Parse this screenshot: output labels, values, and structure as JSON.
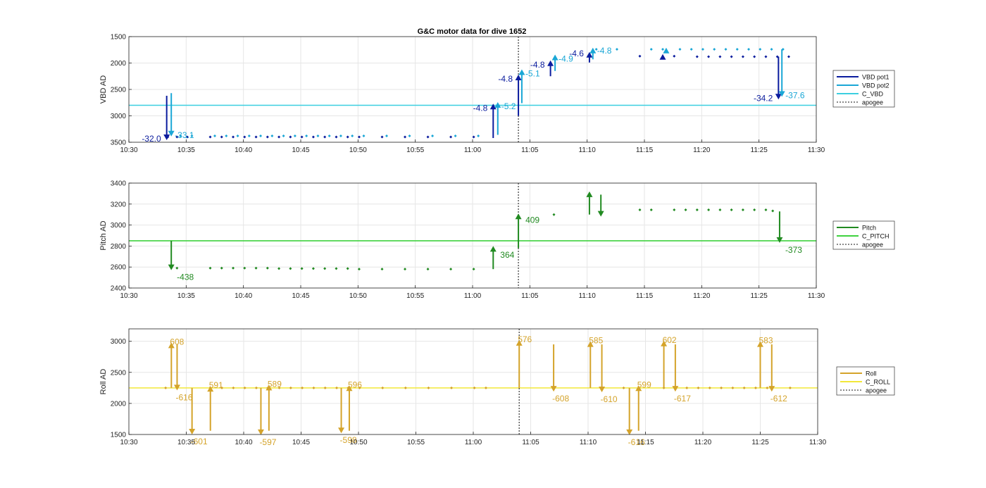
{
  "title": "G&C motor data for dive 1652",
  "colors": {
    "vbd_pot1": "#0b1c9e",
    "vbd_pot2": "#1aa7d6",
    "c_vbd": "#3ccfe0",
    "pitch": "#218a21",
    "c_pitch": "#3fd23f",
    "roll": "#d4a32a",
    "c_roll": "#f2e83a",
    "apogee": "#444444",
    "grid": "#e6e6e6"
  },
  "chart_data": [
    {
      "type": "scatter",
      "title": "G&C motor data for dive 1652",
      "ylabel": "VBD AD",
      "xlabel": "",
      "x_ticks": [
        "10:30",
        "10:35",
        "10:40",
        "10:45",
        "10:50",
        "10:55",
        "11:00",
        "11:05",
        "11:10",
        "11:15",
        "11:20",
        "11:25",
        "11:30"
      ],
      "xlim_minutes": [
        0,
        60
      ],
      "ylim": [
        1500,
        3500
      ],
      "y_reversed": true,
      "y_ticks": [
        1500,
        2000,
        2500,
        3000,
        3500
      ],
      "grid": true,
      "legend": [
        "VBD pot1",
        "VBD pot2",
        "C_VBD",
        "apogee"
      ],
      "legend_position": "right",
      "apogee_minute": 34,
      "reference_line": {
        "name": "C_VBD",
        "y": 2800
      },
      "series": [
        {
          "name": "VBD pot1",
          "x": [
            3.4,
            4.2,
            5.1,
            7.1,
            8.1,
            9.1,
            10.1,
            11.1,
            12.1,
            13.1,
            14.1,
            15.1,
            16.1,
            17.1,
            18.1,
            19.1,
            20.1,
            22.1,
            24.1,
            26.1,
            28.1,
            30.1,
            44.6,
            47.6,
            49.6,
            50.6,
            51.6,
            52.6,
            53.6,
            54.6,
            55.6,
            56.6,
            57.6
          ],
          "y": [
            3400,
            3400,
            3400,
            3400,
            3400,
            3400,
            3400,
            3400,
            3400,
            3400,
            3400,
            3400,
            3400,
            3400,
            3400,
            3400,
            3400,
            3400,
            3400,
            3400,
            3400,
            3400,
            1870,
            1870,
            1880,
            1880,
            1880,
            1880,
            1880,
            1880,
            1880,
            1880,
            1880
          ]
        },
        {
          "name": "VBD pot2",
          "x": [
            4.5,
            5.5,
            7.5,
            8.5,
            9.5,
            10.5,
            11.5,
            12.5,
            13.5,
            14.5,
            15.5,
            16.5,
            17.5,
            18.5,
            19.5,
            20.5,
            22.5,
            24.5,
            26.5,
            28.5,
            30.5,
            40.8,
            42.6,
            45.6,
            46.6,
            48.1,
            49.1,
            50.1,
            51.1,
            52.1,
            53.1,
            54.1,
            55.1,
            56.1,
            57.1
          ],
          "y": [
            3380,
            3380,
            3380,
            3380,
            3380,
            3380,
            3380,
            3380,
            3380,
            3380,
            3380,
            3380,
            3380,
            3380,
            3380,
            3380,
            3380,
            3380,
            3380,
            3380,
            3380,
            1740,
            1740,
            1740,
            1740,
            1740,
            1740,
            1740,
            1740,
            1740,
            1740,
            1740,
            1740,
            1740,
            1740
          ]
        }
      ],
      "moves": [
        {
          "series": "VBD pot1",
          "x": 3.3,
          "from": 2620,
          "to": 3460,
          "label": "-32.0"
        },
        {
          "series": "VBD pot2",
          "x": 3.7,
          "from": 2570,
          "to": 3390,
          "label": "-33.1"
        },
        {
          "series": "VBD pot1",
          "x": 31.8,
          "from": 3420,
          "to": 2770,
          "label": "-4.8"
        },
        {
          "series": "VBD pot2",
          "x": 32.2,
          "from": 3360,
          "to": 2740,
          "label": "-5.2"
        },
        {
          "series": "VBD pot1",
          "x": 34.0,
          "from": 3000,
          "to": 2220,
          "label": "-4.8"
        },
        {
          "series": "VBD pot2",
          "x": 34.3,
          "from": 2760,
          "to": 2120,
          "label": "-5.1"
        },
        {
          "series": "VBD pot1",
          "x": 36.8,
          "from": 2250,
          "to": 1950,
          "label": "-4.8"
        },
        {
          "series": "VBD pot2",
          "x": 37.2,
          "from": 2150,
          "to": 1840,
          "label": "-4.9"
        },
        {
          "series": "VBD pot1",
          "x": 40.2,
          "from": 1990,
          "to": 1790,
          "label": "-4.6"
        },
        {
          "series": "VBD pot2",
          "x": 40.5,
          "from": 1930,
          "to": 1710,
          "label": "-4.8"
        },
        {
          "series": "VBD pot1",
          "x": 46.6,
          "from": 1870,
          "to": 1830,
          "label": ""
        },
        {
          "series": "VBD pot2",
          "x": 46.9,
          "from": 1800,
          "to": 1710,
          "label": ""
        },
        {
          "series": "VBD pot1",
          "x": 56.7,
          "from": 1880,
          "to": 2690,
          "label": "-34.2"
        },
        {
          "series": "VBD pot2",
          "x": 57.0,
          "from": 1740,
          "to": 2640,
          "label": "-37.6"
        }
      ]
    },
    {
      "type": "scatter",
      "ylabel": "Pitch AD",
      "xlabel": "",
      "x_ticks": [
        "10:30",
        "10:35",
        "10:40",
        "10:45",
        "10:50",
        "10:55",
        "11:00",
        "11:05",
        "11:10",
        "11:15",
        "11:20",
        "11:25",
        "11:30"
      ],
      "xlim_minutes": [
        0,
        60
      ],
      "ylim": [
        2400,
        3400
      ],
      "y_ticks": [
        2400,
        2600,
        2800,
        3000,
        3200,
        3400
      ],
      "grid": true,
      "legend": [
        "Pitch",
        "C_PITCH",
        "apogee"
      ],
      "legend_position": "right",
      "apogee_minute": 34,
      "reference_line": {
        "name": "C_PITCH",
        "y": 2850
      },
      "series": [
        {
          "name": "Pitch",
          "x": [
            4.2,
            7.1,
            8.1,
            9.1,
            10.1,
            11.1,
            12.1,
            13.1,
            14.1,
            15.1,
            16.1,
            17.1,
            18.1,
            19.1,
            20.1,
            22.1,
            24.1,
            26.1,
            28.1,
            30.1,
            37.1,
            44.6,
            45.6,
            47.6,
            48.6,
            49.6,
            50.6,
            51.6,
            52.6,
            53.6,
            54.6,
            55.6,
            56.2
          ],
          "y": [
            2590,
            2590,
            2590,
            2590,
            2590,
            2590,
            2590,
            2585,
            2585,
            2585,
            2585,
            2585,
            2585,
            2585,
            2580,
            2580,
            2580,
            2580,
            2580,
            2580,
            3100,
            3145,
            3145,
            3145,
            3145,
            3145,
            3145,
            3145,
            3145,
            3145,
            3145,
            3145,
            3135
          ]
        }
      ],
      "moves": [
        {
          "x": 3.7,
          "from": 2850,
          "to": 2570,
          "label": "-438"
        },
        {
          "x": 31.8,
          "from": 2580,
          "to": 2800,
          "label": "364"
        },
        {
          "x": 34.0,
          "from": 2780,
          "to": 3110,
          "label": "409"
        },
        {
          "x": 40.2,
          "from": 3100,
          "to": 3320,
          "label": ""
        },
        {
          "x": 41.2,
          "from": 3290,
          "to": 3080,
          "label": ""
        },
        {
          "x": 56.8,
          "from": 3130,
          "to": 2830,
          "label": "-373"
        }
      ]
    },
    {
      "type": "scatter",
      "ylabel": "Roll AD",
      "xlabel": "",
      "x_ticks": [
        "10:30",
        "10:35",
        "10:40",
        "10:45",
        "10:50",
        "10:55",
        "11:00",
        "11:05",
        "11:10",
        "11:15",
        "11:20",
        "11:25",
        "11:30"
      ],
      "xlim_minutes": [
        0,
        60
      ],
      "ylim": [
        1500,
        3200
      ],
      "y_ticks": [
        1500,
        2000,
        2500,
        3000
      ],
      "grid": true,
      "legend": [
        "Roll",
        "C_ROLL",
        "apogee"
      ],
      "legend_position": "right",
      "apogee_minute": 34,
      "reference_line": {
        "name": "C_ROLL",
        "y": 2250
      },
      "series": [
        {
          "name": "Roll",
          "x": [
            3.2,
            7.1,
            8.1,
            9.1,
            10.1,
            11.1,
            12.1,
            13.1,
            14.1,
            15.1,
            16.1,
            17.1,
            18.1,
            19.1,
            20.1,
            22.1,
            24.1,
            26.1,
            28.1,
            30.1,
            31.1,
            43.1,
            46.6,
            48.6,
            49.6,
            50.6,
            51.6,
            52.6,
            53.6,
            54.6,
            55.6,
            57.6
          ],
          "y": [
            2250,
            2250,
            2250,
            2250,
            2250,
            2250,
            2250,
            2250,
            2250,
            2250,
            2250,
            2250,
            2250,
            2250,
            2250,
            2250,
            2250,
            2250,
            2250,
            2250,
            2250,
            2250,
            2250,
            2250,
            2250,
            2250,
            2250,
            2250,
            2250,
            2250,
            2250,
            2250
          ]
        }
      ],
      "moves": [
        {
          "x": 3.7,
          "from": 2250,
          "to": 2980,
          "label": "608"
        },
        {
          "x": 4.2,
          "from": 2950,
          "to": 2210,
          "label": "-616"
        },
        {
          "x": 5.5,
          "from": 2250,
          "to": 1500,
          "label": "-601"
        },
        {
          "x": 7.1,
          "from": 1560,
          "to": 2280,
          "label": "591"
        },
        {
          "x": 11.5,
          "from": 2250,
          "to": 1490,
          "label": "-597"
        },
        {
          "x": 12.2,
          "from": 1560,
          "to": 2300,
          "label": "589"
        },
        {
          "x": 18.5,
          "from": 2250,
          "to": 1520,
          "label": "-598"
        },
        {
          "x": 19.2,
          "from": 1560,
          "to": 2290,
          "label": "596"
        },
        {
          "x": 34.0,
          "from": 2250,
          "to": 3020,
          "label": "576"
        },
        {
          "x": 37.0,
          "from": 2950,
          "to": 2190,
          "label": "-608"
        },
        {
          "x": 40.2,
          "from": 2250,
          "to": 3000,
          "label": "585"
        },
        {
          "x": 41.2,
          "from": 2950,
          "to": 2180,
          "label": "-610"
        },
        {
          "x": 43.6,
          "from": 2250,
          "to": 1490,
          "label": "-616"
        },
        {
          "x": 44.4,
          "from": 1560,
          "to": 2290,
          "label": "599"
        },
        {
          "x": 46.6,
          "from": 2250,
          "to": 3010,
          "label": "602"
        },
        {
          "x": 47.6,
          "from": 2950,
          "to": 2190,
          "label": "-617"
        },
        {
          "x": 55.0,
          "from": 2250,
          "to": 3000,
          "label": "583"
        },
        {
          "x": 56.0,
          "from": 2950,
          "to": 2190,
          "label": "-612"
        }
      ]
    }
  ]
}
